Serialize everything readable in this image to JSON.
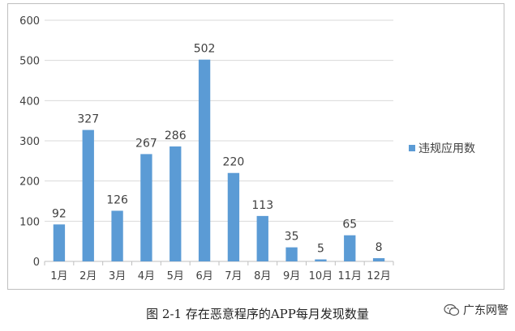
{
  "chart_data": {
    "type": "bar",
    "categories": [
      "1月",
      "2月",
      "3月",
      "4月",
      "5月",
      "6月",
      "7月",
      "8月",
      "9月",
      "10月",
      "11月",
      "12月"
    ],
    "series": [
      {
        "name": "违规应用数",
        "values": [
          92,
          327,
          126,
          267,
          286,
          502,
          220,
          113,
          35,
          5,
          65,
          8
        ],
        "color": "#5b9bd5"
      }
    ],
    "ylim": [
      0,
      600
    ],
    "yticks": [
      0,
      100,
      200,
      300,
      400,
      500,
      600
    ],
    "grid": true,
    "legend": "right",
    "data_labels": true
  },
  "caption": "图 2-1 存在恶意程序的APP每月发现数量",
  "watermark": "广东网警"
}
